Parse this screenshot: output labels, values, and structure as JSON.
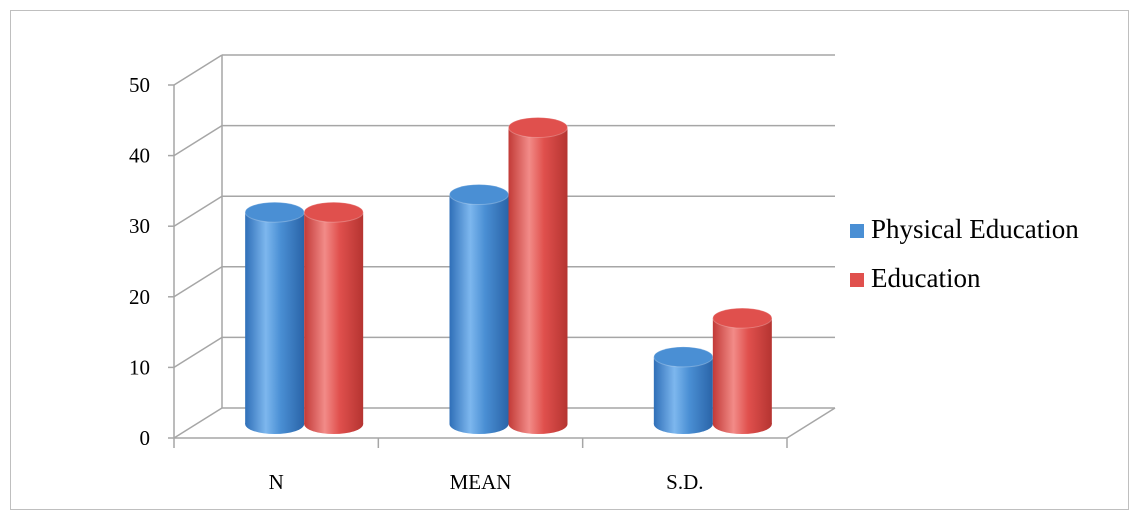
{
  "chart_data": {
    "type": "bar",
    "subtype": "3d-cylinder",
    "title": "",
    "xlabel": "",
    "ylabel": "",
    "categories": [
      "N",
      "MEAN",
      "S.D."
    ],
    "series": [
      {
        "name": "Physical Education",
        "values": [
          30,
          32.5,
          9.5
        ],
        "color": "#4a8fd4"
      },
      {
        "name": "Education",
        "values": [
          30,
          42,
          15
        ],
        "color": "#e0504d"
      }
    ],
    "ylim": [
      0,
      50
    ],
    "yticks": [
      0,
      10,
      20,
      30,
      40,
      50
    ],
    "grid": true,
    "legend_position": "right"
  }
}
